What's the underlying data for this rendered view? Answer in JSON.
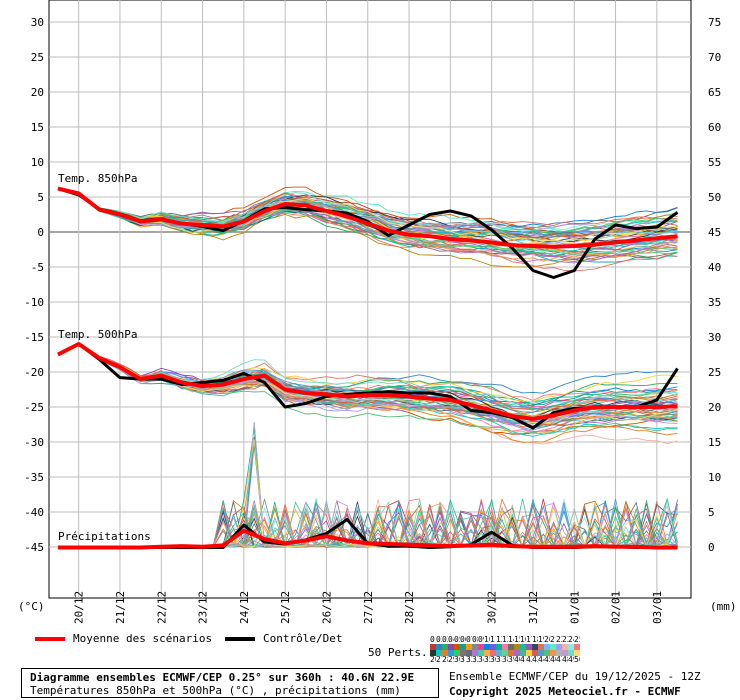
{
  "chart_data": {
    "type": "line",
    "title": "Diagramme ensembles ECMWF/CEP 0.25° sur 360h : 40.6N 22.9E",
    "subtitle": "Températures 850hPa et 500hPa (°C) , précipitations (mm)",
    "left_axis": {
      "unit_label": "(°C)",
      "range": [
        -50,
        32
      ],
      "ticks": [
        30,
        25,
        20,
        15,
        10,
        5,
        0,
        -5,
        -10,
        -15,
        -20,
        -25,
        -30,
        -35,
        -40,
        -45
      ]
    },
    "right_axis": {
      "unit_label": "(mm)",
      "range": [
        -7.5,
        78
      ],
      "ticks": [
        75,
        70,
        65,
        60,
        55,
        50,
        45,
        40,
        35,
        30,
        25,
        20,
        15,
        10,
        5,
        0
      ]
    },
    "x_ticks": [
      "20/12",
      "21/12",
      "22/12",
      "23/12",
      "24/12",
      "25/12",
      "26/12",
      "27/12",
      "28/12",
      "29/12",
      "30/12",
      "31/12",
      "01/01",
      "02/01",
      "03/01"
    ],
    "x_day_range": [
      0,
      15
    ],
    "grid": true,
    "annotations": {
      "t850": "Temp. 850hPa",
      "t500": "Temp. 500hPa",
      "precip": "Précipitations"
    },
    "mean_850": {
      "x": [
        0,
        0.5,
        1,
        1.5,
        2,
        2.5,
        3,
        3.5,
        4,
        4.5,
        5,
        5.5,
        6,
        6.5,
        7,
        7.5,
        8,
        8.5,
        9,
        9.5,
        10,
        10.5,
        11,
        11.5,
        12,
        12.5,
        13,
        13.5,
        14,
        14.5,
        15
      ],
      "y": [
        6.2,
        5.5,
        3.2,
        2.5,
        1.5,
        1.8,
        1.2,
        1.0,
        0.8,
        1.5,
        3.0,
        4.0,
        3.8,
        3.0,
        2.2,
        1.2,
        0.2,
        -0.4,
        -0.6,
        -1.0,
        -1.2,
        -1.5,
        -1.9,
        -2.0,
        -2.1,
        -2.0,
        -1.8,
        -1.5,
        -1.2,
        -0.9,
        -0.6
      ]
    },
    "control_850": {
      "x": [
        0,
        0.5,
        1,
        1.5,
        2,
        2.5,
        3,
        3.5,
        4,
        4.5,
        5,
        5.5,
        6,
        6.5,
        7,
        7.5,
        8,
        8.5,
        9,
        9.5,
        10,
        10.5,
        11,
        11.5,
        12,
        12.5,
        13,
        13.5,
        14,
        14.5,
        15
      ],
      "y": [
        6.2,
        5.3,
        3.3,
        2.6,
        1.6,
        1.9,
        1.2,
        0.8,
        0.2,
        1.6,
        3.3,
        3.5,
        3.2,
        3.0,
        2.7,
        1.5,
        -0.5,
        1.0,
        2.5,
        3.0,
        2.3,
        0.3,
        -2.3,
        -5.5,
        -6.5,
        -5.5,
        -1.0,
        1.0,
        0.5,
        0.7,
        2.8
      ]
    },
    "mean_500": {
      "x": [
        0,
        0.5,
        1,
        1.5,
        2,
        2.5,
        3,
        3.5,
        4,
        4.5,
        5,
        5.5,
        6,
        6.5,
        7,
        7.5,
        8,
        8.5,
        9,
        9.5,
        10,
        10.5,
        11,
        11.5,
        12,
        12.5,
        13,
        13.5,
        14,
        14.5,
        15
      ],
      "y": [
        -17.5,
        -16.0,
        -18.0,
        -19.3,
        -21.0,
        -20.5,
        -21.5,
        -22.0,
        -21.8,
        -21.0,
        -20.5,
        -22.5,
        -23.0,
        -23.2,
        -23.5,
        -23.3,
        -23.3,
        -23.5,
        -23.8,
        -24.0,
        -24.7,
        -25.5,
        -26.3,
        -26.7,
        -26.2,
        -25.5,
        -25.0,
        -25.0,
        -25.0,
        -25.0,
        -24.9
      ]
    },
    "control_500": {
      "x": [
        0,
        0.5,
        1,
        1.5,
        2,
        2.5,
        3,
        3.5,
        4,
        4.5,
        5,
        5.5,
        6,
        6.5,
        7,
        7.5,
        8,
        8.5,
        9,
        9.5,
        10,
        10.5,
        11,
        11.5,
        12,
        12.5,
        13,
        13.5,
        14,
        14.5,
        15
      ],
      "y": [
        -17.5,
        -16.0,
        -18.2,
        -20.8,
        -21.0,
        -21.0,
        -21.8,
        -21.5,
        -21.2,
        -20.2,
        -21.5,
        -25.0,
        -24.5,
        -23.5,
        -23.2,
        -23.0,
        -22.8,
        -23.0,
        -23.0,
        -23.5,
        -25.5,
        -25.8,
        -26.5,
        -28.0,
        -25.8,
        -25.2,
        -25.1,
        -25.0,
        -25.0,
        -24.0,
        -19.5
      ]
    },
    "mean_precip": {
      "x": [
        0,
        0.5,
        1,
        1.5,
        2,
        2.5,
        3,
        3.5,
        4,
        4.5,
        5,
        5.5,
        6,
        6.5,
        7,
        7.5,
        8,
        8.5,
        9,
        9.5,
        10,
        10.5,
        11,
        11.5,
        12,
        12.5,
        13,
        13.5,
        14,
        14.5,
        15
      ],
      "y": [
        0,
        0,
        0,
        0,
        0,
        0.1,
        0.2,
        0.1,
        0.3,
        2.4,
        1.2,
        0.6,
        1.0,
        1.6,
        1.0,
        0.6,
        0.5,
        0.4,
        0.3,
        0.2,
        0.3,
        0.4,
        0.2,
        0.1,
        0.1,
        0.1,
        0.2,
        0.1,
        0.1,
        0.0,
        0.0
      ]
    },
    "control_precip": {
      "x": [
        0,
        0.5,
        1,
        1.5,
        2,
        2.5,
        3,
        3.5,
        4,
        4.5,
        5,
        5.5,
        6,
        6.5,
        7,
        7.5,
        8,
        8.5,
        9,
        9.5,
        10,
        10.5,
        11,
        11.5,
        12,
        12.5,
        13,
        13.5,
        14,
        14.5,
        15
      ],
      "y": [
        0,
        0,
        0,
        0,
        0,
        0,
        0,
        0,
        0,
        3.2,
        0.8,
        0.5,
        1.1,
        2.0,
        4.0,
        0.6,
        0.2,
        0.2,
        0.0,
        0.1,
        0.4,
        2.2,
        0.3,
        0.0,
        0.0,
        0.0,
        0.1,
        0.1,
        0.0,
        0.0,
        0.0
      ]
    },
    "ensemble_members": 50
  },
  "legend": {
    "mean": "Moyenne des scénarios",
    "control": "Contrôle/Det",
    "perts": "50 Perts."
  },
  "member_numbers": {
    "row1": [
      "01",
      "02",
      "03",
      "04",
      "05",
      "06",
      "07",
      "08",
      "09",
      "10",
      "11",
      "12",
      "13",
      "14",
      "15",
      "16",
      "17",
      "18",
      "19",
      "20",
      "21",
      "22",
      "23",
      "24",
      "25"
    ],
    "row2": [
      "26",
      "27",
      "28",
      "29",
      "30",
      "31",
      "32",
      "33",
      "34",
      "35",
      "36",
      "37",
      "38",
      "39",
      "40",
      "41",
      "42",
      "43",
      "44",
      "45",
      "46",
      "47",
      "48",
      "49",
      "50"
    ]
  },
  "colors": {
    "mean": "#ff0000",
    "control": "#000000",
    "grid": "#bdbdbd"
  },
  "footer": {
    "title": "Diagramme ensembles ECMWF/CEP 0.25° sur 360h : 40.6N 22.9E",
    "subtitle": "Températures 850hPa et 500hPa (°C) , précipitations (mm)",
    "run": "Ensemble ECMWF/CEP du 19/12/2025 - 12Z",
    "copyright": "Copyright 2025 Meteociel.fr - ECMWF"
  }
}
